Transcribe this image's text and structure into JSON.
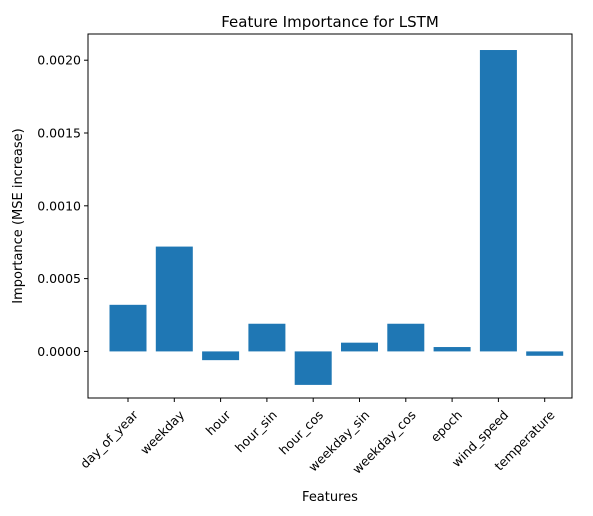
{
  "chart_data": {
    "type": "bar",
    "title": "Feature Importance for LSTM",
    "xlabel": "Features",
    "ylabel": "Importance (MSE increase)",
    "categories": [
      "day_of_year",
      "weekday",
      "hour",
      "hour_sin",
      "hour_cos",
      "weekday_sin",
      "weekday_cos",
      "epoch",
      "wind_speed",
      "temperature"
    ],
    "values": [
      0.00032,
      0.00072,
      -6e-05,
      0.00019,
      -0.00023,
      6e-05,
      0.00019,
      3e-05,
      0.00207,
      -3e-05
    ],
    "ylim": [
      -0.00032,
      0.00218
    ],
    "yticks": [
      0.0,
      0.0005,
      0.001,
      0.0015,
      0.002
    ],
    "ytick_labels": [
      "0.0000",
      "0.0005",
      "0.0010",
      "0.0015",
      "0.0020"
    ],
    "bar_color": "#1f77b4",
    "grid": false,
    "legend": "none"
  }
}
